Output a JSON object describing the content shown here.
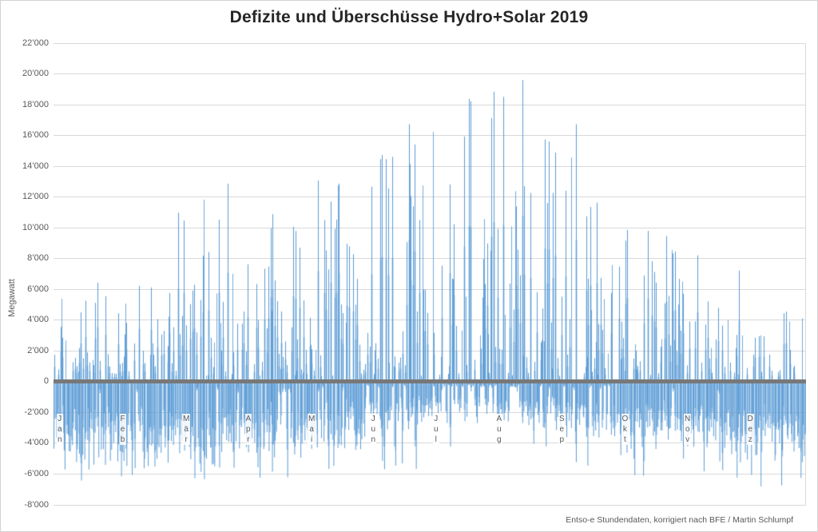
{
  "page": {
    "background": "#FFFFFF",
    "frame_border_color": "#D3D3D3"
  },
  "footer": {
    "source_note": "Entso-e Stundendaten, korrigiert nach BFE / Martin Schlumpf"
  },
  "chart_data": {
    "type": "bar",
    "title": "Defizite und Überschüsse Hydro+Solar 2019",
    "xlabel": "",
    "ylabel": "Megawatt",
    "resolution": "hourly values for full year 2019",
    "legend": "none",
    "grid": "horizontal",
    "ylim": [
      -8000,
      22000
    ],
    "ytick_step": 2000,
    "ytick_labels": [
      "22’000",
      "20’000",
      "18’000",
      "16’000",
      "14’000",
      "12’000",
      "10’000",
      "8’000",
      "6’000",
      "4’000",
      "2’000",
      "0",
      "-2’000",
      "-4’000",
      "-6’000",
      "-8’000"
    ],
    "x_categories": [
      "Jan",
      "Feb",
      "Mär",
      "Apr",
      "Mai",
      "Jun",
      "Jul",
      "Aug",
      "Sep",
      "Okt",
      "Nov",
      "Dez"
    ],
    "x_label_style": "stacked-vertical",
    "days_per_month": [
      31,
      28,
      31,
      30,
      31,
      30,
      31,
      31,
      30,
      31,
      30,
      31
    ],
    "bar_color": "#5B9BD5",
    "zero_line_color": "#787878",
    "gridline_color": "#D9D9D9",
    "text_color": "#595959",
    "title_color": "#262626",
    "monthly_envelope": [
      {
        "month": "Jan",
        "max_surplus": 6500,
        "typical_deficit": -5300,
        "max_deficit": -6700,
        "surplus_day_exponent": 3.2,
        "deficit_gap_chance": 0.02
      },
      {
        "month": "Feb",
        "max_surplus": 6300,
        "typical_deficit": -5100,
        "max_deficit": -6200,
        "surplus_day_exponent": 2.8,
        "deficit_gap_chance": 0.03
      },
      {
        "month": "Mär",
        "max_surplus": 13000,
        "typical_deficit": -5200,
        "max_deficit": -6800,
        "surplus_day_exponent": 3.0,
        "deficit_gap_chance": 0.05
      },
      {
        "month": "Apr",
        "max_surplus": 11000,
        "typical_deficit": -4600,
        "max_deficit": -6300,
        "surplus_day_exponent": 2.4,
        "deficit_gap_chance": 0.08
      },
      {
        "month": "Mai",
        "max_surplus": 13200,
        "typical_deficit": -4100,
        "max_deficit": -6200,
        "surplus_day_exponent": 2.4,
        "deficit_gap_chance": 0.1
      },
      {
        "month": "Jun",
        "max_surplus": 16900,
        "typical_deficit": -3100,
        "max_deficit": -5800,
        "surplus_day_exponent": 2.2,
        "deficit_gap_chance": 0.18
      },
      {
        "month": "Jul",
        "max_surplus": 18400,
        "typical_deficit": -2500,
        "max_deficit": -4300,
        "surplus_day_exponent": 2.2,
        "deficit_gap_chance": 0.3
      },
      {
        "month": "Aug",
        "max_surplus": 19800,
        "typical_deficit": -2700,
        "max_deficit": -4600,
        "surplus_day_exponent": 2.2,
        "deficit_gap_chance": 0.25
      },
      {
        "month": "Sep",
        "max_surplus": 16900,
        "typical_deficit": -3300,
        "max_deficit": -5600,
        "surplus_day_exponent": 2.6,
        "deficit_gap_chance": 0.15
      },
      {
        "month": "Okt",
        "max_surplus": 9900,
        "typical_deficit": -4400,
        "max_deficit": -6400,
        "surplus_day_exponent": 2.8,
        "deficit_gap_chance": 0.08
      },
      {
        "month": "Nov",
        "max_surplus": 8300,
        "typical_deficit": -4900,
        "max_deficit": -6300,
        "surplus_day_exponent": 3.0,
        "deficit_gap_chance": 0.04
      },
      {
        "month": "Dez",
        "max_surplus": 4600,
        "typical_deficit": -5100,
        "max_deficit": -6800,
        "surplus_day_exponent": 3.2,
        "deficit_gap_chance": 0.03
      }
    ]
  }
}
